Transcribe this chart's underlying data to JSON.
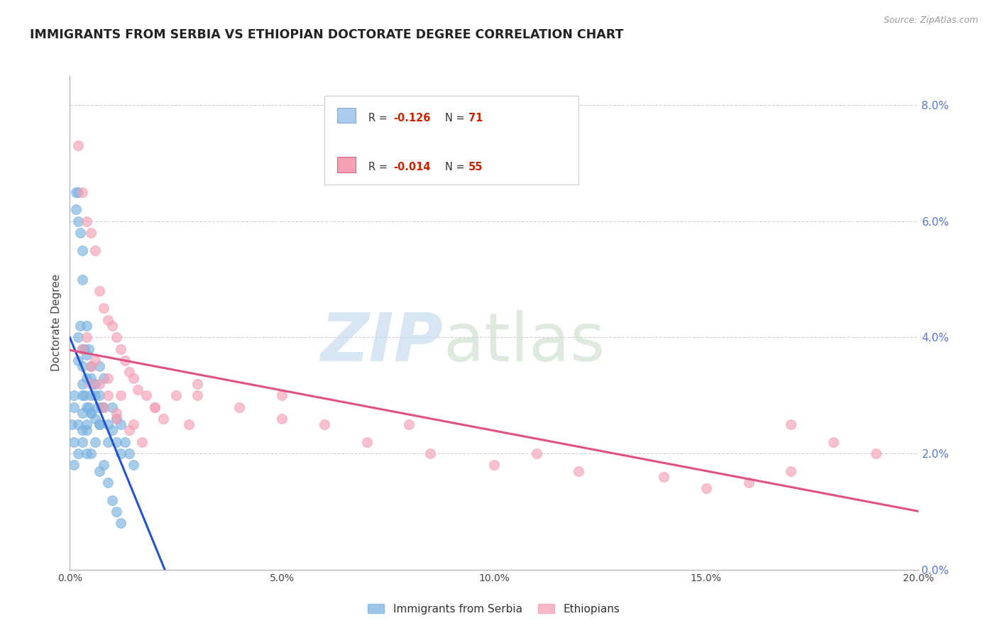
{
  "title": "IMMIGRANTS FROM SERBIA VS ETHIOPIAN DOCTORATE DEGREE CORRELATION CHART",
  "source": "Source: ZipAtlas.com",
  "ylabel": "Doctorate Degree",
  "xlim": [
    0.0,
    0.2
  ],
  "ylim": [
    0.0,
    0.085
  ],
  "xticks": [
    0.0,
    0.05,
    0.1,
    0.15,
    0.2
  ],
  "xtick_labels": [
    "0.0%",
    "5.0%",
    "10.0%",
    "15.0%",
    "20.0%"
  ],
  "yticks_right": [
    0.0,
    0.02,
    0.04,
    0.06,
    0.08
  ],
  "ytick_right_labels": [
    "0.0%",
    "2.0%",
    "4.0%",
    "6.0%",
    "8.0%"
  ],
  "grid_color": "#cccccc",
  "background_color": "#ffffff",
  "series1_color": "#7ab3e0",
  "series2_color": "#f4a0b5",
  "series1_label": "Immigrants from Serbia",
  "series2_label": "Ethiopians",
  "trend1_color": "#2255cc",
  "trend2_color": "#e05080",
  "serbia_x": [
    0.0005,
    0.001,
    0.001,
    0.0015,
    0.0015,
    0.002,
    0.002,
    0.002,
    0.002,
    0.0025,
    0.0025,
    0.003,
    0.003,
    0.003,
    0.003,
    0.003,
    0.0035,
    0.0035,
    0.004,
    0.004,
    0.004,
    0.004,
    0.0045,
    0.0045,
    0.005,
    0.005,
    0.005,
    0.005,
    0.0055,
    0.006,
    0.006,
    0.006,
    0.0065,
    0.007,
    0.007,
    0.007,
    0.0075,
    0.008,
    0.008,
    0.009,
    0.009,
    0.01,
    0.01,
    0.011,
    0.011,
    0.012,
    0.012,
    0.013,
    0.014,
    0.015,
    0.001,
    0.002,
    0.003,
    0.003,
    0.004,
    0.005,
    0.001,
    0.002,
    0.003,
    0.004,
    0.003,
    0.004,
    0.005,
    0.006,
    0.007,
    0.007,
    0.008,
    0.009,
    0.01,
    0.011,
    0.012
  ],
  "serbia_y": [
    0.025,
    0.03,
    0.028,
    0.065,
    0.062,
    0.065,
    0.06,
    0.04,
    0.036,
    0.058,
    0.042,
    0.055,
    0.05,
    0.038,
    0.035,
    0.032,
    0.038,
    0.03,
    0.042,
    0.037,
    0.033,
    0.028,
    0.038,
    0.028,
    0.035,
    0.033,
    0.03,
    0.027,
    0.032,
    0.032,
    0.03,
    0.026,
    0.028,
    0.035,
    0.03,
    0.025,
    0.028,
    0.033,
    0.028,
    0.025,
    0.022,
    0.028,
    0.024,
    0.026,
    0.022,
    0.025,
    0.02,
    0.022,
    0.02,
    0.018,
    0.022,
    0.025,
    0.027,
    0.024,
    0.024,
    0.027,
    0.018,
    0.02,
    0.022,
    0.02,
    0.03,
    0.025,
    0.02,
    0.022,
    0.017,
    0.025,
    0.018,
    0.015,
    0.012,
    0.01,
    0.008
  ],
  "ethiopia_x": [
    0.002,
    0.003,
    0.004,
    0.005,
    0.006,
    0.007,
    0.008,
    0.009,
    0.01,
    0.011,
    0.012,
    0.013,
    0.014,
    0.015,
    0.016,
    0.018,
    0.02,
    0.022,
    0.025,
    0.028,
    0.003,
    0.005,
    0.007,
    0.009,
    0.011,
    0.004,
    0.006,
    0.009,
    0.012,
    0.015,
    0.005,
    0.008,
    0.011,
    0.014,
    0.017,
    0.02,
    0.03,
    0.04,
    0.05,
    0.06,
    0.07,
    0.085,
    0.1,
    0.12,
    0.14,
    0.16,
    0.17,
    0.18,
    0.19,
    0.03,
    0.05,
    0.08,
    0.11,
    0.15,
    0.17
  ],
  "ethiopia_y": [
    0.073,
    0.065,
    0.06,
    0.058,
    0.055,
    0.048,
    0.045,
    0.043,
    0.042,
    0.04,
    0.038,
    0.036,
    0.034,
    0.033,
    0.031,
    0.03,
    0.028,
    0.026,
    0.03,
    0.025,
    0.038,
    0.035,
    0.032,
    0.03,
    0.027,
    0.04,
    0.036,
    0.033,
    0.03,
    0.025,
    0.032,
    0.028,
    0.026,
    0.024,
    0.022,
    0.028,
    0.03,
    0.028,
    0.026,
    0.025,
    0.022,
    0.02,
    0.018,
    0.017,
    0.016,
    0.015,
    0.025,
    0.022,
    0.02,
    0.032,
    0.03,
    0.025,
    0.02,
    0.014,
    0.017
  ]
}
